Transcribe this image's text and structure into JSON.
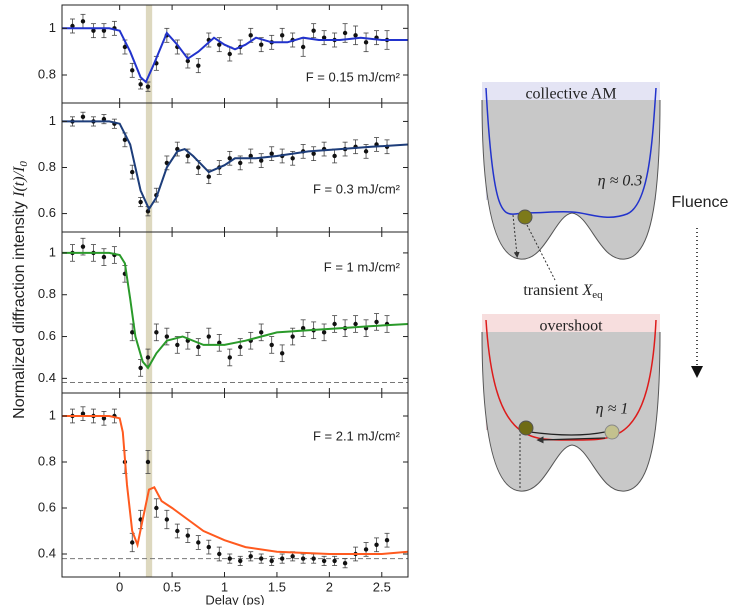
{
  "ylabel": "Normalized diffraction intensity",
  "ylabel_math": "I(t)/I",
  "ylabel_sub": "0",
  "chart_data": [
    {
      "type": "scatter",
      "annotation": "F = 0.15 mJ/cm²",
      "highlight": [
        0.25,
        0.31
      ],
      "xlim": [
        -0.55,
        2.75
      ],
      "xticks": [
        0,
        0.5,
        1,
        1.5,
        2,
        2.5
      ],
      "ylim": [
        0.68,
        1.1
      ],
      "yticks": [
        0.8,
        1
      ],
      "series": [
        {
          "kind": "errorbar",
          "color": "#111111",
          "x": [
            -0.45,
            -0.35,
            -0.25,
            -0.15,
            -0.05,
            0.05,
            0.12,
            0.2,
            0.27,
            0.35,
            0.45,
            0.55,
            0.65,
            0.75,
            0.85,
            0.95,
            1.05,
            1.15,
            1.25,
            1.35,
            1.45,
            1.55,
            1.65,
            1.75,
            1.85,
            1.95,
            2.05,
            2.15,
            2.25,
            2.35,
            2.45,
            2.55
          ],
          "values": [
            1.01,
            1.03,
            0.99,
            0.99,
            1.0,
            0.92,
            0.82,
            0.76,
            0.75,
            0.85,
            0.97,
            0.92,
            0.86,
            0.84,
            0.95,
            0.93,
            0.89,
            0.92,
            0.97,
            0.93,
            0.94,
            0.97,
            0.95,
            0.92,
            0.99,
            0.96,
            0.95,
            0.98,
            0.97,
            0.94,
            0.96,
            0.95
          ],
          "errors": [
            0.03,
            0.03,
            0.03,
            0.03,
            0.03,
            0.03,
            0.03,
            0.02,
            0.02,
            0.03,
            0.03,
            0.03,
            0.03,
            0.03,
            0.03,
            0.03,
            0.03,
            0.03,
            0.03,
            0.03,
            0.03,
            0.03,
            0.03,
            0.04,
            0.03,
            0.03,
            0.03,
            0.04,
            0.04,
            0.04,
            0.03,
            0.04
          ]
        },
        {
          "kind": "line",
          "color": "#2233cc",
          "x": [
            -0.55,
            -0.1,
            0,
            0.1,
            0.2,
            0.25,
            0.32,
            0.45,
            0.55,
            0.65,
            0.75,
            0.9,
            1.0,
            1.1,
            1.2,
            1.3,
            1.45,
            1.6,
            1.75,
            1.9,
            2.1,
            2.3,
            2.5,
            2.75
          ],
          "values": [
            1,
            1,
            0.99,
            0.9,
            0.79,
            0.77,
            0.84,
            0.98,
            0.93,
            0.87,
            0.9,
            0.96,
            0.93,
            0.91,
            0.93,
            0.96,
            0.94,
            0.94,
            0.96,
            0.95,
            0.95,
            0.96,
            0.95,
            0.95
          ]
        }
      ]
    },
    {
      "type": "scatter",
      "annotation": "F = 0.3 mJ/cm²",
      "highlight": [
        0.25,
        0.31
      ],
      "xlim": [
        -0.55,
        2.75
      ],
      "xticks": [
        0,
        0.5,
        1,
        1.5,
        2,
        2.5
      ],
      "ylim": [
        0.52,
        1.08
      ],
      "yticks": [
        0.6,
        0.8,
        1
      ],
      "series": [
        {
          "kind": "errorbar",
          "color": "#111111",
          "x": [
            -0.45,
            -0.35,
            -0.25,
            -0.15,
            -0.05,
            0.05,
            0.12,
            0.2,
            0.27,
            0.35,
            0.45,
            0.55,
            0.65,
            0.75,
            0.85,
            0.95,
            1.05,
            1.15,
            1.25,
            1.35,
            1.45,
            1.55,
            1.65,
            1.75,
            1.85,
            1.95,
            2.05,
            2.15,
            2.25,
            2.35,
            2.45,
            2.55
          ],
          "values": [
            1.0,
            1.02,
            1.0,
            1.01,
            0.99,
            0.92,
            0.78,
            0.65,
            0.61,
            0.68,
            0.82,
            0.88,
            0.85,
            0.8,
            0.76,
            0.8,
            0.84,
            0.82,
            0.85,
            0.83,
            0.86,
            0.85,
            0.84,
            0.87,
            0.86,
            0.88,
            0.85,
            0.88,
            0.89,
            0.87,
            0.9,
            0.89
          ],
          "errors": [
            0.02,
            0.02,
            0.02,
            0.02,
            0.02,
            0.03,
            0.03,
            0.02,
            0.02,
            0.03,
            0.03,
            0.03,
            0.03,
            0.03,
            0.03,
            0.03,
            0.03,
            0.03,
            0.03,
            0.03,
            0.03,
            0.03,
            0.03,
            0.03,
            0.03,
            0.03,
            0.03,
            0.03,
            0.03,
            0.03,
            0.03,
            0.03
          ]
        },
        {
          "kind": "line",
          "color": "#1d3d7a",
          "x": [
            -0.55,
            -0.1,
            0,
            0.1,
            0.2,
            0.28,
            0.35,
            0.45,
            0.55,
            0.62,
            0.7,
            0.85,
            1.0,
            1.1,
            1.3,
            1.5,
            1.8,
            2.1,
            2.4,
            2.75
          ],
          "values": [
            1,
            1,
            0.99,
            0.9,
            0.7,
            0.62,
            0.67,
            0.8,
            0.87,
            0.88,
            0.85,
            0.78,
            0.81,
            0.84,
            0.84,
            0.85,
            0.87,
            0.88,
            0.89,
            0.9
          ]
        }
      ]
    },
    {
      "type": "scatter",
      "annotation": "F = 1 mJ/cm²",
      "highlight": [
        0.25,
        0.31
      ],
      "hline": 0.38,
      "xlim": [
        -0.55,
        2.75
      ],
      "xticks": [
        0,
        0.5,
        1,
        1.5,
        2,
        2.5
      ],
      "ylim": [
        0.33,
        1.1
      ],
      "yticks": [
        0.4,
        0.6,
        0.8,
        1
      ],
      "series": [
        {
          "kind": "errorbar",
          "color": "#111111",
          "x": [
            -0.45,
            -0.35,
            -0.25,
            -0.15,
            -0.05,
            0.05,
            0.12,
            0.2,
            0.27,
            0.35,
            0.45,
            0.55,
            0.65,
            0.75,
            0.85,
            0.95,
            1.05,
            1.15,
            1.25,
            1.35,
            1.45,
            1.55,
            1.65,
            1.75,
            1.85,
            1.95,
            2.05,
            2.15,
            2.25,
            2.35,
            2.45,
            2.55
          ],
          "values": [
            1.0,
            1.03,
            1.0,
            0.98,
            0.99,
            0.9,
            0.62,
            0.45,
            0.5,
            0.62,
            0.6,
            0.56,
            0.58,
            0.55,
            0.6,
            0.57,
            0.5,
            0.55,
            0.58,
            0.62,
            0.56,
            0.52,
            0.6,
            0.64,
            0.63,
            0.62,
            0.66,
            0.64,
            0.66,
            0.64,
            0.67,
            0.66
          ],
          "errors": [
            0.04,
            0.04,
            0.04,
            0.04,
            0.04,
            0.04,
            0.04,
            0.04,
            0.04,
            0.04,
            0.04,
            0.04,
            0.04,
            0.04,
            0.04,
            0.04,
            0.04,
            0.04,
            0.04,
            0.04,
            0.04,
            0.04,
            0.04,
            0.04,
            0.04,
            0.04,
            0.04,
            0.04,
            0.04,
            0.04,
            0.04,
            0.04
          ]
        },
        {
          "kind": "line",
          "color": "#2a9a2a",
          "x": [
            -0.55,
            -0.1,
            0,
            0.05,
            0.1,
            0.15,
            0.22,
            0.27,
            0.35,
            0.45,
            0.6,
            0.8,
            1.0,
            1.2,
            1.5,
            1.8,
            2.1,
            2.4,
            2.75
          ],
          "values": [
            1,
            1,
            0.99,
            0.95,
            0.78,
            0.6,
            0.48,
            0.45,
            0.52,
            0.58,
            0.6,
            0.56,
            0.56,
            0.58,
            0.62,
            0.63,
            0.64,
            0.65,
            0.66
          ]
        }
      ]
    },
    {
      "type": "scatter",
      "annotation": "F = 2.1 mJ/cm²",
      "highlight": [
        0.25,
        0.31
      ],
      "hline": 0.38,
      "xlabel": "Delay (ps)",
      "xlim": [
        -0.55,
        2.75
      ],
      "xticks": [
        0,
        0.5,
        1,
        1.5,
        2,
        2.5
      ],
      "ylim": [
        0.3,
        1.1
      ],
      "yticks": [
        0.4,
        0.6,
        0.8,
        1
      ],
      "series": [
        {
          "kind": "errorbar",
          "color": "#111111",
          "x": [
            -0.45,
            -0.35,
            -0.25,
            -0.15,
            -0.05,
            0.05,
            0.12,
            0.2,
            0.27,
            0.35,
            0.45,
            0.55,
            0.65,
            0.75,
            0.85,
            0.95,
            1.05,
            1.15,
            1.25,
            1.35,
            1.45,
            1.55,
            1.65,
            1.75,
            1.85,
            1.95,
            2.05,
            2.15,
            2.25,
            2.35,
            2.45,
            2.55
          ],
          "values": [
            1.0,
            1.01,
            1.0,
            0.99,
            1.0,
            0.8,
            0.45,
            0.55,
            0.8,
            0.6,
            0.55,
            0.5,
            0.48,
            0.45,
            0.43,
            0.4,
            0.38,
            0.37,
            0.39,
            0.38,
            0.37,
            0.38,
            0.39,
            0.38,
            0.38,
            0.37,
            0.37,
            0.36,
            0.4,
            0.42,
            0.44,
            0.46
          ],
          "errors": [
            0.03,
            0.03,
            0.03,
            0.03,
            0.03,
            0.05,
            0.04,
            0.04,
            0.05,
            0.04,
            0.04,
            0.03,
            0.03,
            0.03,
            0.03,
            0.03,
            0.02,
            0.02,
            0.02,
            0.02,
            0.02,
            0.02,
            0.02,
            0.02,
            0.02,
            0.02,
            0.02,
            0.02,
            0.03,
            0.03,
            0.03,
            0.03
          ]
        },
        {
          "kind": "line",
          "color": "#ff5a1f",
          "x": [
            -0.55,
            -0.1,
            0,
            0.03,
            0.07,
            0.12,
            0.17,
            0.22,
            0.28,
            0.33,
            0.4,
            0.5,
            0.65,
            0.8,
            1.0,
            1.2,
            1.5,
            2.0,
            2.5,
            2.75
          ],
          "values": [
            1,
            1,
            0.99,
            0.93,
            0.7,
            0.5,
            0.44,
            0.55,
            0.68,
            0.69,
            0.63,
            0.6,
            0.55,
            0.5,
            0.46,
            0.43,
            0.41,
            0.4,
            0.4,
            0.41
          ]
        }
      ]
    }
  ],
  "diagram": {
    "top_band": "collective AM",
    "eta_top": "η ≈ 0.3",
    "transient": "transient ",
    "x_symbol": "X",
    "x_subscript": "eq",
    "fluence": "Fluence",
    "bottom_band": "overshoot",
    "eta_bottom": "η ≈ 1"
  }
}
